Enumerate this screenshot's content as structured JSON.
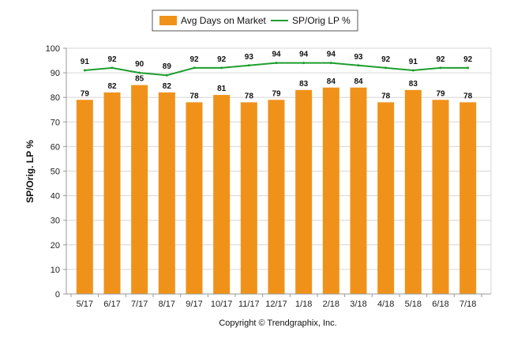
{
  "chart_data": {
    "type": "bar",
    "categories": [
      "5/17",
      "6/17",
      "7/17",
      "8/17",
      "9/17",
      "10/17",
      "11/17",
      "12/17",
      "1/18",
      "2/18",
      "3/18",
      "4/18",
      "5/18",
      "6/18",
      "7/18"
    ],
    "series": [
      {
        "name": "Avg Days on Market",
        "type": "bar",
        "color": "#f0921a",
        "values": [
          79,
          82,
          85,
          82,
          78,
          81,
          78,
          79,
          83,
          84,
          84,
          78,
          83,
          79,
          78
        ]
      },
      {
        "name": "SP/Orig LP %",
        "type": "line",
        "color": "#1e9e2e",
        "values": [
          91,
          92,
          90,
          89,
          92,
          92,
          93,
          94,
          94,
          94,
          93,
          92,
          91,
          92,
          92
        ]
      }
    ],
    "ylabel": "SP/Orig. LP %",
    "ylim": [
      0,
      100
    ],
    "yticks": [
      0,
      10,
      20,
      30,
      40,
      50,
      60,
      70,
      80,
      90,
      100
    ],
    "grid": true,
    "legend": "top-center",
    "footer": "Copyright © Trendgraphix, Inc."
  }
}
